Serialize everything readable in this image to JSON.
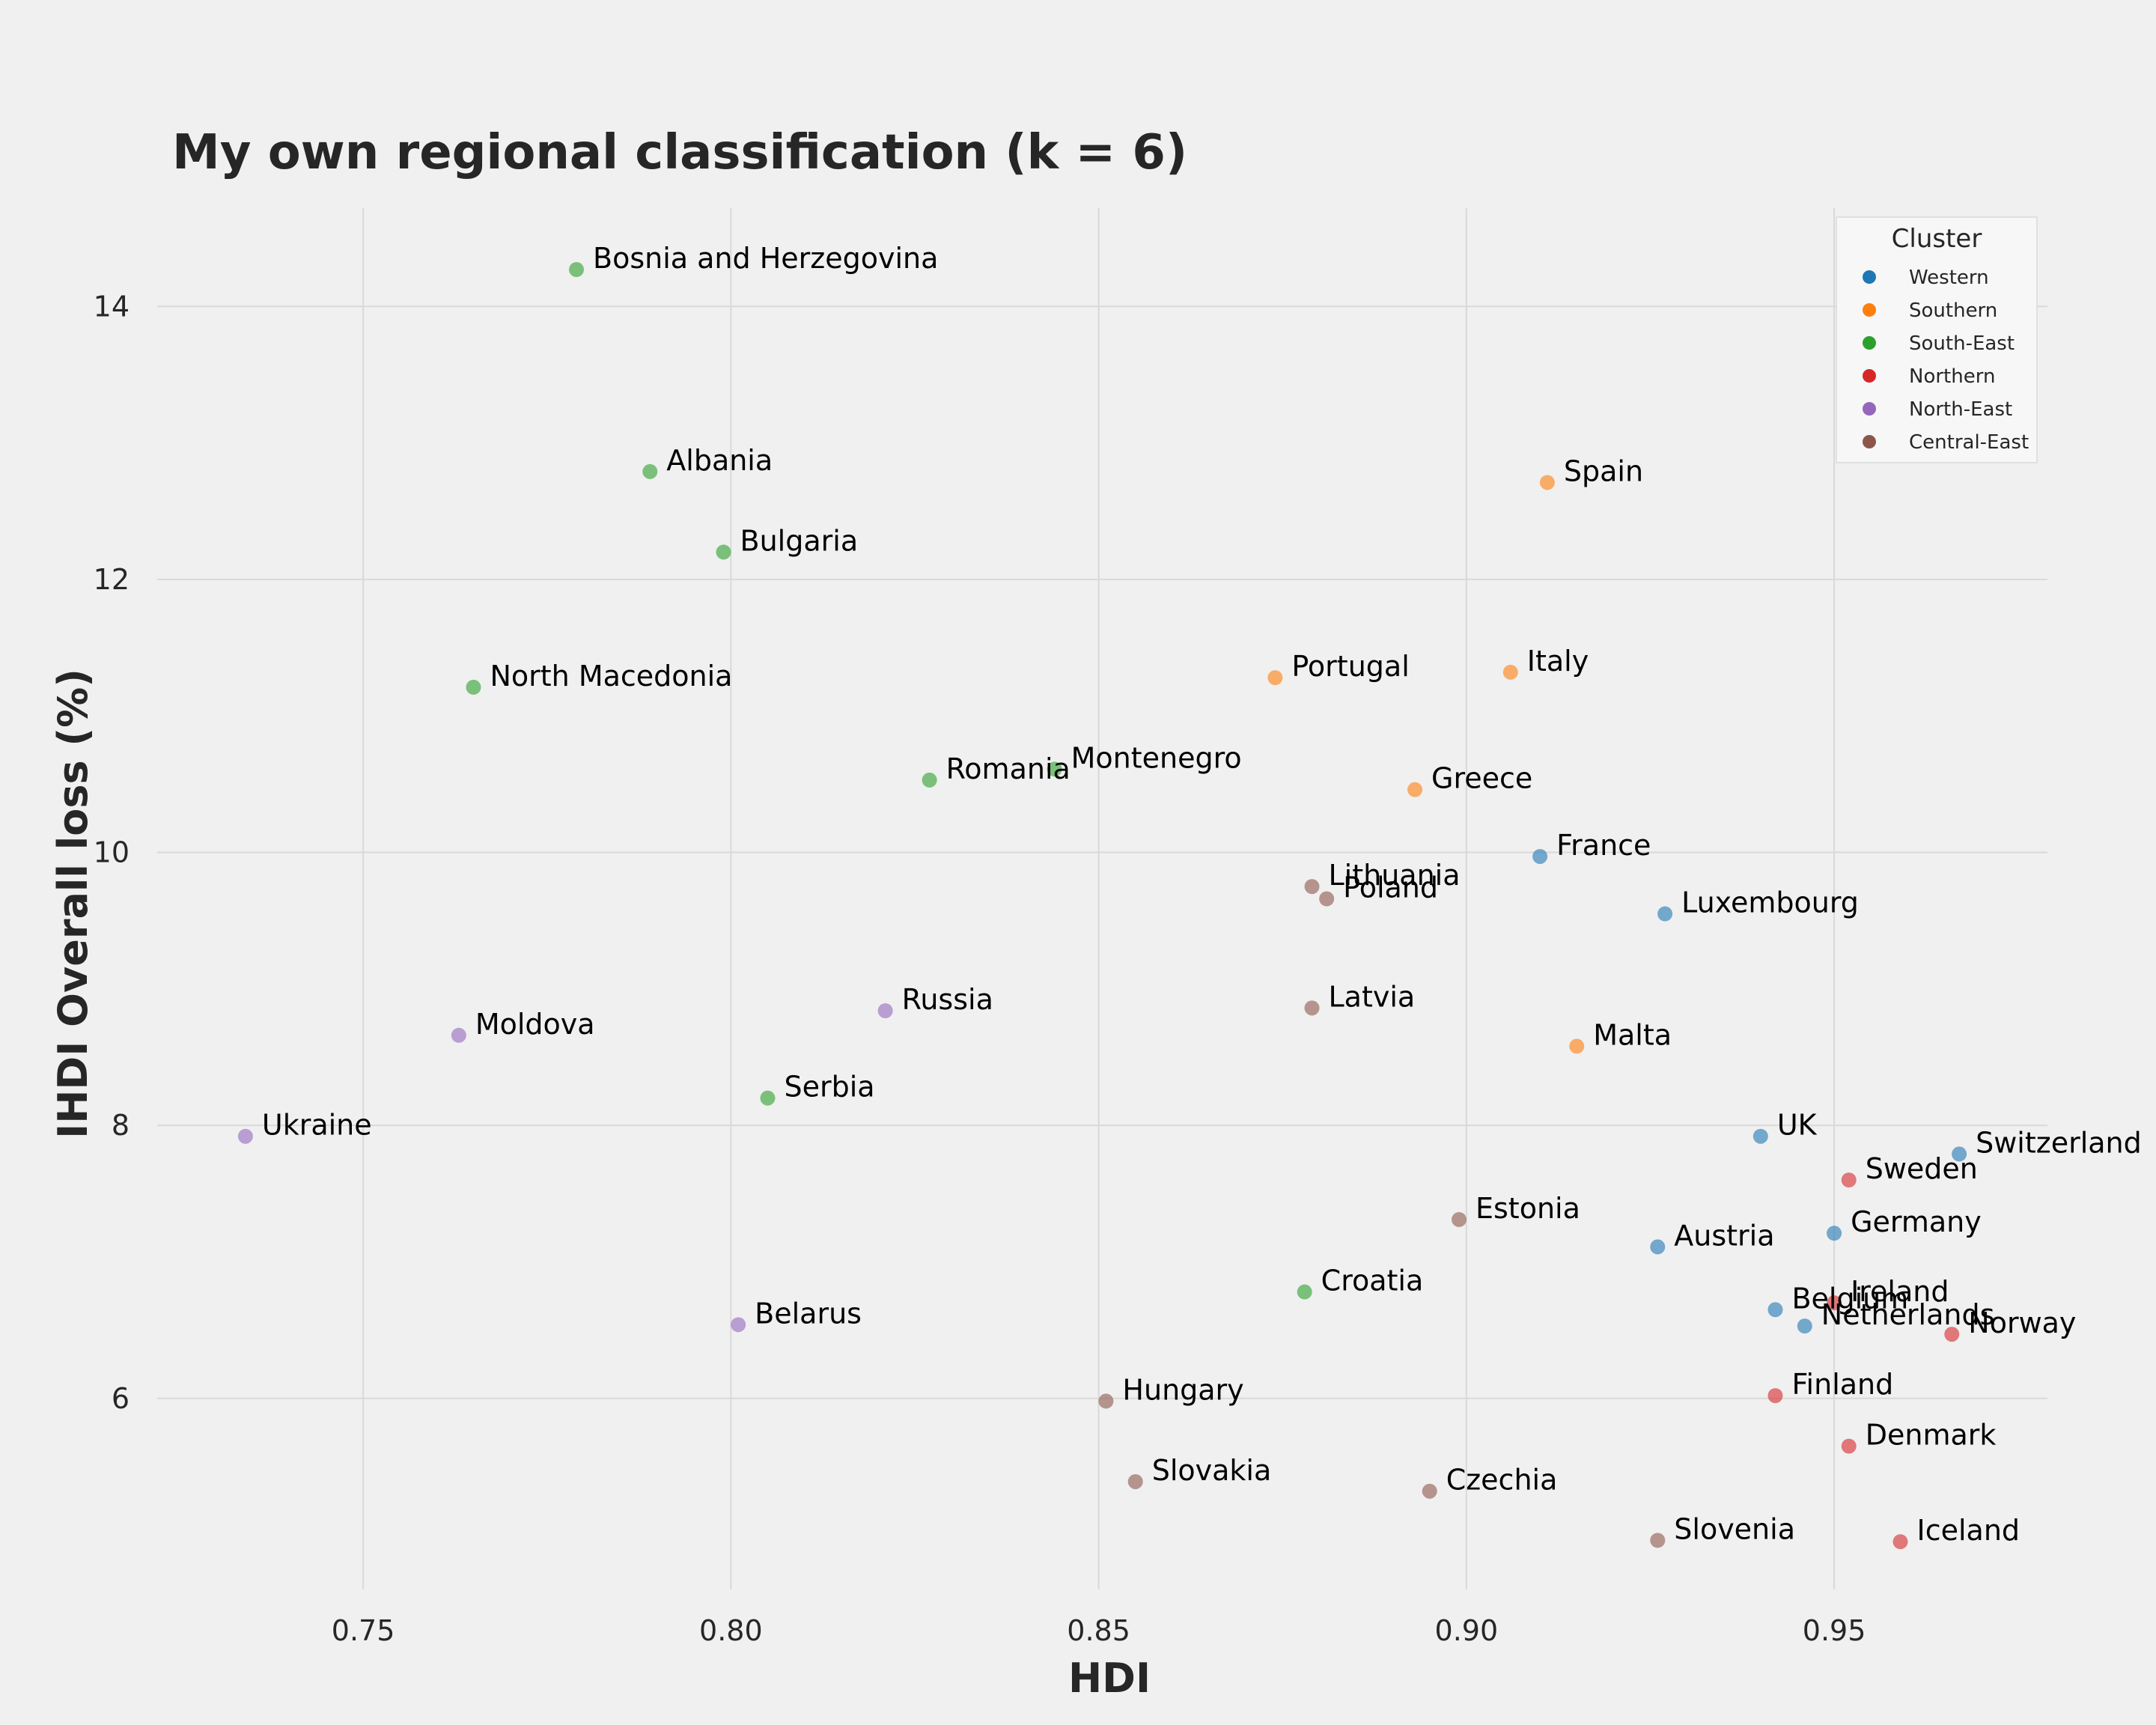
{
  "chart_data": {
    "type": "scatter",
    "title": "My own regional classification (k = 6)",
    "xlabel": "HDI",
    "ylabel": "IHDI Overall loss (%)",
    "xlim": [
      0.722,
      0.979
    ],
    "ylim": [
      4.6,
      14.72
    ],
    "xticks": [
      0.75,
      0.8,
      0.85,
      0.9,
      0.95
    ],
    "xtick_labels": [
      "0.75",
      "0.80",
      "0.85",
      "0.90",
      "0.95"
    ],
    "yticks": [
      6,
      8,
      10,
      12,
      14
    ],
    "ytick_labels": [
      "6",
      "8",
      "10",
      "12",
      "14"
    ],
    "grid": true,
    "legend": {
      "title": "Cluster",
      "placement": "top-right"
    },
    "series": [
      {
        "name": "Western",
        "color": "#1f77b4",
        "points": [
          {
            "label": "France",
            "x": 0.91,
            "y": 9.97
          },
          {
            "label": "Luxembourg",
            "x": 0.927,
            "y": 9.55
          },
          {
            "label": "UK",
            "x": 0.94,
            "y": 7.92
          },
          {
            "label": "Switzerland",
            "x": 0.967,
            "y": 7.79
          },
          {
            "label": "Germany",
            "x": 0.95,
            "y": 7.21
          },
          {
            "label": "Austria",
            "x": 0.926,
            "y": 7.11
          },
          {
            "label": "Belgium",
            "x": 0.942,
            "y": 6.65
          },
          {
            "label": "Netherlands",
            "x": 0.946,
            "y": 6.53
          }
        ]
      },
      {
        "name": "Southern",
        "color": "#ff7f0e",
        "points": [
          {
            "label": "Spain",
            "x": 0.911,
            "y": 12.71
          },
          {
            "label": "Italy",
            "x": 0.906,
            "y": 11.32
          },
          {
            "label": "Portugal",
            "x": 0.874,
            "y": 11.28
          },
          {
            "label": "Greece",
            "x": 0.893,
            "y": 10.46
          },
          {
            "label": "Malta",
            "x": 0.915,
            "y": 8.58
          }
        ]
      },
      {
        "name": "South-East",
        "color": "#2ca02c",
        "points": [
          {
            "label": "Bosnia and Herzegovina",
            "x": 0.779,
            "y": 14.27
          },
          {
            "label": "Albania",
            "x": 0.789,
            "y": 12.79
          },
          {
            "label": "Bulgaria",
            "x": 0.799,
            "y": 12.2
          },
          {
            "label": "North Macedonia",
            "x": 0.765,
            "y": 11.21
          },
          {
            "label": "Romania",
            "x": 0.827,
            "y": 10.53
          },
          {
            "label": "Montenegro",
            "x": 0.844,
            "y": 10.61
          },
          {
            "label": "Serbia",
            "x": 0.805,
            "y": 8.2
          },
          {
            "label": "Croatia",
            "x": 0.878,
            "y": 6.78
          }
        ]
      },
      {
        "name": "Northern",
        "color": "#d62728",
        "points": [
          {
            "label": "Sweden",
            "x": 0.952,
            "y": 7.6
          },
          {
            "label": "Ireland",
            "x": 0.95,
            "y": 6.7
          },
          {
            "label": "Norway",
            "x": 0.966,
            "y": 6.47
          },
          {
            "label": "Finland",
            "x": 0.942,
            "y": 6.02
          },
          {
            "label": "Denmark",
            "x": 0.952,
            "y": 5.65
          },
          {
            "label": "Iceland",
            "x": 0.959,
            "y": 4.95
          }
        ]
      },
      {
        "name": "North-East",
        "color": "#9467bd",
        "points": [
          {
            "label": "Russia",
            "x": 0.821,
            "y": 8.84
          },
          {
            "label": "Moldova",
            "x": 0.763,
            "y": 8.66
          },
          {
            "label": "Ukraine",
            "x": 0.734,
            "y": 7.92
          },
          {
            "label": "Belarus",
            "x": 0.801,
            "y": 6.54
          }
        ]
      },
      {
        "name": "Central-East",
        "color": "#8c564b",
        "points": [
          {
            "label": "Lithuania",
            "x": 0.879,
            "y": 9.75
          },
          {
            "label": "Poland",
            "x": 0.881,
            "y": 9.66
          },
          {
            "label": "Latvia",
            "x": 0.879,
            "y": 8.86
          },
          {
            "label": "Estonia",
            "x": 0.899,
            "y": 7.31
          },
          {
            "label": "Hungary",
            "x": 0.851,
            "y": 5.98
          },
          {
            "label": "Slovakia",
            "x": 0.855,
            "y": 5.39
          },
          {
            "label": "Czechia",
            "x": 0.895,
            "y": 5.32
          },
          {
            "label": "Slovenia",
            "x": 0.926,
            "y": 4.96
          }
        ]
      }
    ]
  }
}
